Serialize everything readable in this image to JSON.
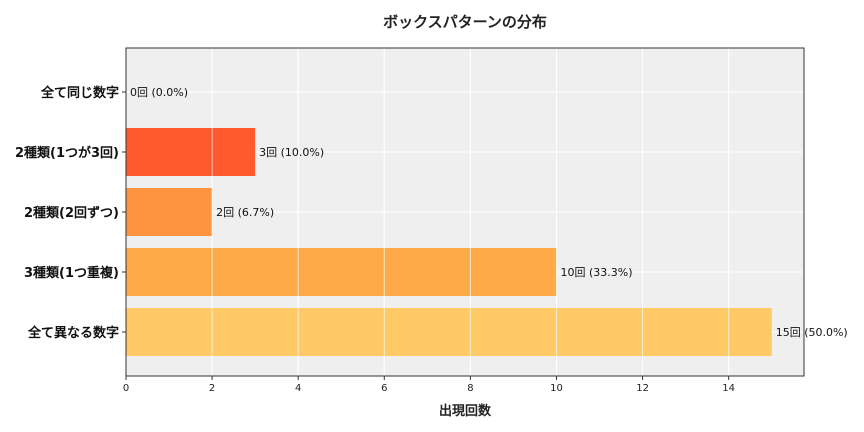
{
  "chart_data": {
    "type": "bar",
    "orientation": "horizontal",
    "title": "ボックスパターンの分布",
    "xlabel": "出現回数",
    "ylabel": "",
    "categories": [
      "全て同じ数字",
      "2種類(1つが3回)",
      "2種類(2回ずつ)",
      "3種類(1つ重複)",
      "全て異なる数字"
    ],
    "values": [
      0,
      3,
      2,
      10,
      15
    ],
    "data_labels": [
      "0回 (0.0%)",
      "3回 (10.0%)",
      "2回 (6.7%)",
      "10回 (33.3%)",
      "15回 (50.0%)"
    ],
    "colors": [
      "#e84a27",
      "#ff5a2e",
      "#ff9440",
      "#ffaa48",
      "#ffc965"
    ],
    "xlim": [
      0,
      15.75
    ],
    "xticks": [
      0,
      2,
      4,
      6,
      8,
      10,
      12,
      14
    ],
    "xtick_labels": [
      "0",
      "2",
      "4",
      "6",
      "8",
      "10",
      "12",
      "14"
    ],
    "grid": true,
    "background": "#efefef"
  }
}
